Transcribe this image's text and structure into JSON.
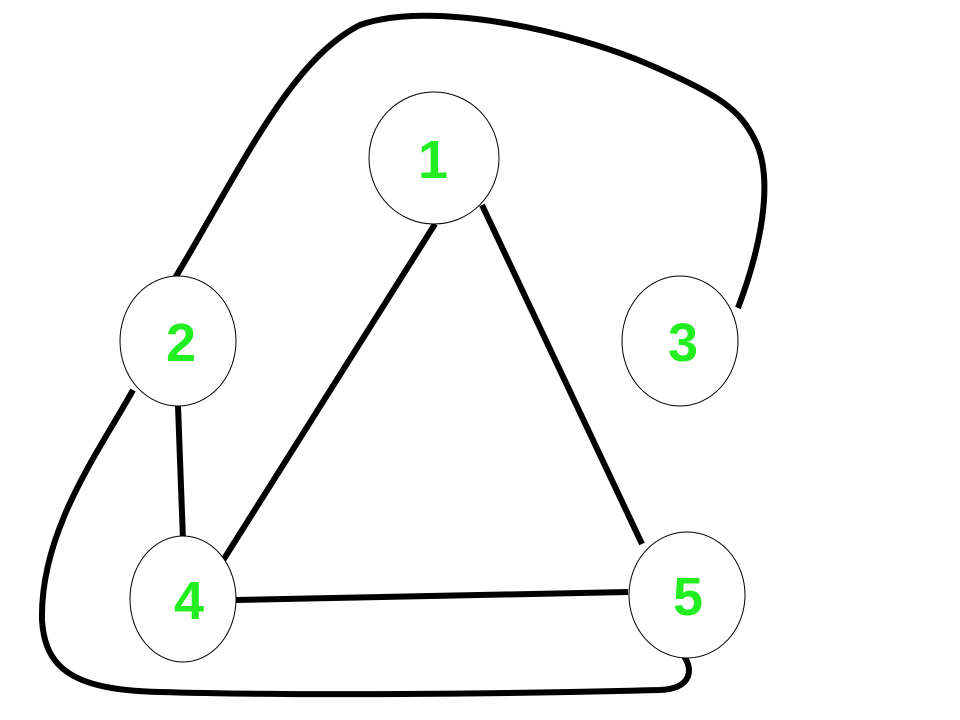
{
  "graph": {
    "label_color": "#22ee22",
    "line_color": "#000000",
    "nodes": [
      {
        "id": "1",
        "label": "1"
      },
      {
        "id": "2",
        "label": "2"
      },
      {
        "id": "3",
        "label": "3"
      },
      {
        "id": "4",
        "label": "4"
      },
      {
        "id": "5",
        "label": "5"
      }
    ],
    "edges": [
      {
        "from": "1",
        "to": "4"
      },
      {
        "from": "1",
        "to": "5"
      },
      {
        "from": "2",
        "to": "4"
      },
      {
        "from": "4",
        "to": "5"
      },
      {
        "from": "2",
        "to": "3"
      },
      {
        "from": "2",
        "to": "5"
      }
    ]
  }
}
